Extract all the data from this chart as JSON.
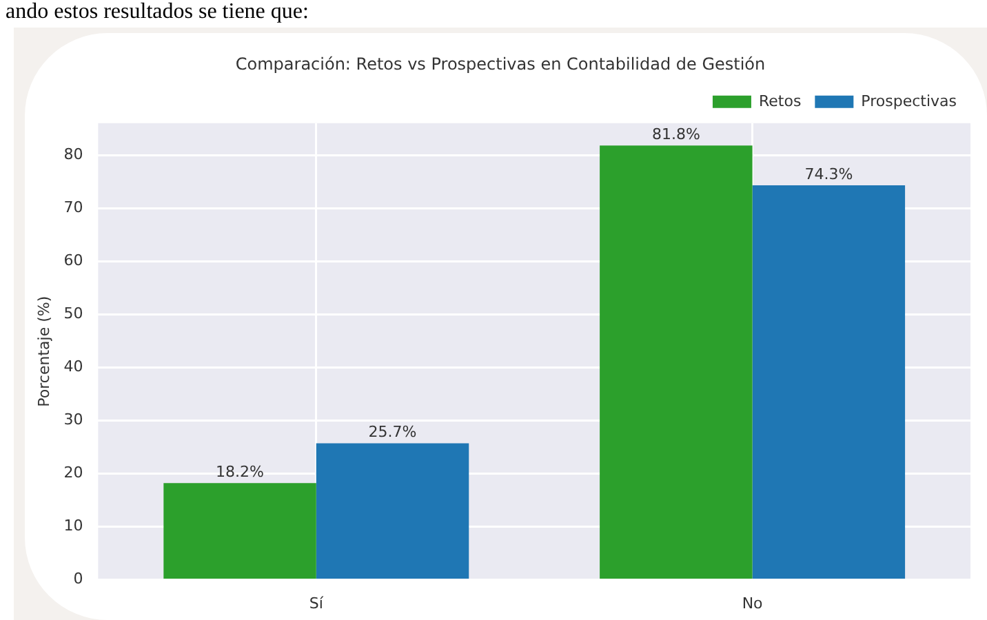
{
  "chart_data": {
    "type": "bar",
    "title": "Comparación: Retos vs Prospectivas en Contabilidad de Gestión",
    "ylabel": "Porcentaje (%)",
    "annotations": [
      "ando estos resultados se tiene que:"
    ],
    "categories": [
      "Sí",
      "No"
    ],
    "series": [
      {
        "name": "Retos",
        "color": "#2ca02c",
        "values": [
          18.2,
          81.8
        ],
        "value_labels": [
          "18.2%",
          "81.8%"
        ]
      },
      {
        "name": "Prospectivas",
        "color": "#1f77b4",
        "values": [
          25.7,
          74.3
        ],
        "value_labels": [
          "25.7%",
          "74.3%"
        ]
      }
    ],
    "ylim": [
      0,
      86
    ],
    "yticks": [
      0,
      10,
      20,
      30,
      40,
      50,
      60,
      70,
      80
    ],
    "grid": true,
    "legend": "top right"
  }
}
